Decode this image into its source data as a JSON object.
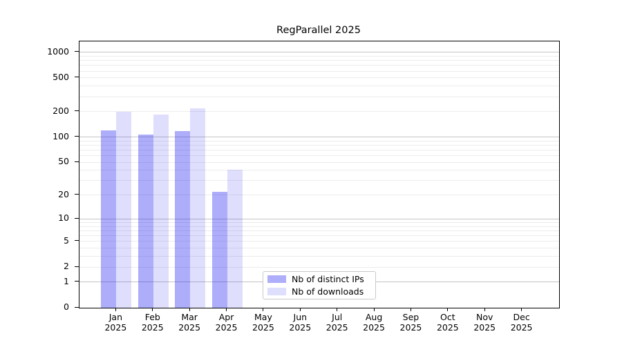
{
  "title": "RegParallel 2025",
  "chart_data": {
    "type": "bar",
    "title": "RegParallel 2025",
    "categories": [
      "Jan",
      "Feb",
      "Mar",
      "Apr",
      "May",
      "Jun",
      "Jul",
      "Aug",
      "Sep",
      "Oct",
      "Nov",
      "Dec"
    ],
    "category_year": "2025",
    "series": [
      {
        "name": "Nb of distinct IPs",
        "color": "rgba(16,16,240,0.34)",
        "legend_color": "#aeaefa",
        "values": [
          121,
          107,
          117,
          22,
          null,
          null,
          null,
          null,
          null,
          null,
          null,
          null
        ]
      },
      {
        "name": "Nb of downloads",
        "color": "rgba(16,16,240,0.135)",
        "legend_color": "#dedefd",
        "values": [
          199,
          185,
          220,
          41,
          null,
          null,
          null,
          null,
          null,
          null,
          null,
          null
        ]
      }
    ],
    "yscale": "log1p",
    "yticks": [
      0,
      1,
      2,
      5,
      10,
      20,
      50,
      100,
      200,
      500,
      1000
    ],
    "yminor_gridlines": [
      2,
      3,
      4,
      5,
      6,
      7,
      8,
      9,
      20,
      30,
      40,
      50,
      60,
      70,
      80,
      90,
      200,
      300,
      400,
      500,
      600,
      700,
      800,
      900
    ],
    "ymajor_gridlines": [
      1,
      10,
      100,
      1000
    ],
    "ylim": [
      0,
      1330
    ],
    "xlabel": "",
    "ylabel": "",
    "grid": "horizontal",
    "legend_position": "inside-bottom-center"
  }
}
